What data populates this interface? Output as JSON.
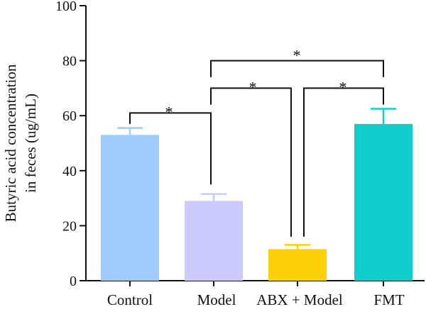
{
  "chart_data": {
    "type": "bar",
    "title": "",
    "xlabel": "",
    "ylabel_lines": [
      "Butyric acid concentration",
      "in feces (ug/mL)"
    ],
    "ylim": [
      0,
      100
    ],
    "yticks": [
      0,
      20,
      40,
      60,
      80,
      100
    ],
    "grid": false,
    "categories": [
      "Control",
      "Model",
      "ABX + Model",
      "FMT"
    ],
    "values": [
      53,
      29,
      11.5,
      57
    ],
    "errors": [
      2.5,
      2.5,
      1.5,
      5.5
    ],
    "colors": [
      "#9fcbfc",
      "#cccbfd",
      "#ffd00a",
      "#0fcecb"
    ],
    "significance": [
      {
        "from": 0,
        "to": 1,
        "label": "*",
        "y": 61
      },
      {
        "from": 1,
        "to": 2,
        "label": "*",
        "y": 70
      },
      {
        "from": 2,
        "to": 3,
        "label": "*",
        "y": 70
      },
      {
        "from": 1,
        "to": 3,
        "label": "*",
        "y": 80
      }
    ]
  }
}
